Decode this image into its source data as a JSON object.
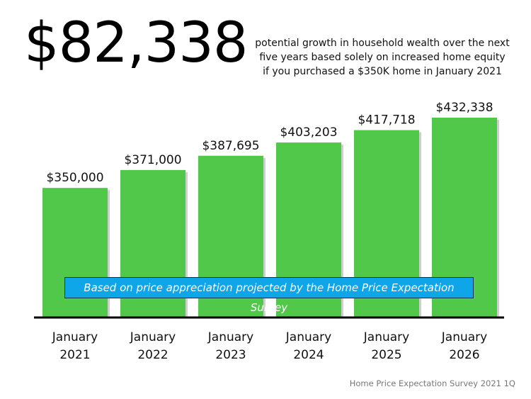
{
  "headline": "$82,338",
  "subtitle_lines": [
    "potential growth in household wealth over the next",
    "five years based solely on increased home equity",
    "if you purchased a $350K home in January 2021"
  ],
  "note": "Based on price appreciation projected by the Home Price Expectation Survey",
  "source": "Home Price Expectation Survey 2021 1Q",
  "colors": {
    "bar": "#52c84a",
    "note_box": "#0ea5e9",
    "axis": "#000000"
  },
  "chart_data": {
    "type": "bar",
    "categories": [
      [
        "January",
        "2021"
      ],
      [
        "January",
        "2022"
      ],
      [
        "January",
        "2023"
      ],
      [
        "January",
        "2024"
      ],
      [
        "January",
        "2025"
      ],
      [
        "January",
        "2026"
      ]
    ],
    "values": [
      350000,
      371000,
      387695,
      403203,
      417718,
      432338
    ],
    "data_labels": [
      "$350,000",
      "$371,000",
      "$387,695",
      "$403,203",
      "$417,718",
      "$432,338"
    ],
    "title": "",
    "xlabel": "",
    "ylabel": "",
    "ylim": [
      199000,
      432338
    ],
    "grid": false
  }
}
